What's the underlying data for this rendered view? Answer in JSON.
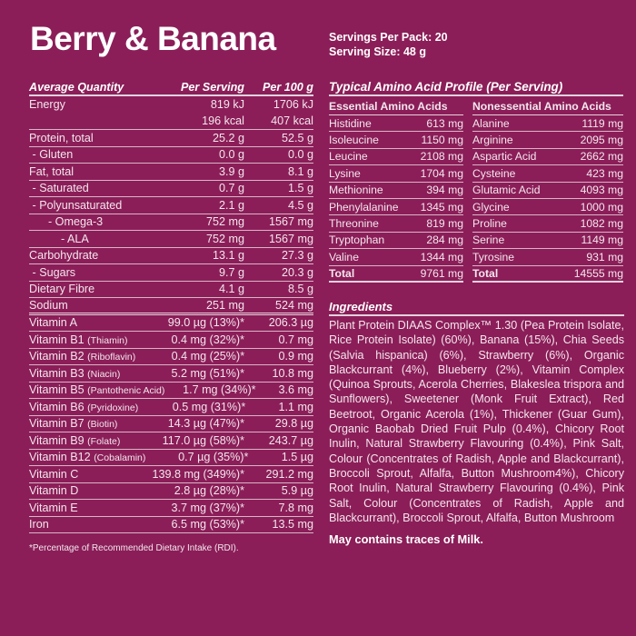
{
  "title": "Berry & Banana",
  "servings_per_pack": "Servings Per Pack: 20",
  "serving_size": "Serving Size: 48 g",
  "nutrition": {
    "headers": [
      "Average Quantity",
      "Per Serving",
      "Per 100 g"
    ],
    "rows": [
      [
        "Energy",
        "819 kJ",
        "1706 kJ"
      ],
      [
        "",
        "196 kcal",
        "407 kcal"
      ],
      [
        "Protein, total",
        "25.2 g",
        "52.5 g"
      ],
      [
        " - Gluten",
        "0.0 g",
        "0.0 g"
      ],
      [
        "Fat, total",
        "3.9 g",
        "8.1 g"
      ],
      [
        " - Saturated",
        "0.7 g",
        "1.5 g"
      ],
      [
        " - Polyunsaturated",
        "2.1 g",
        "4.5 g"
      ],
      [
        "      - Omega-3",
        "752 mg",
        "1567 mg"
      ],
      [
        "          - ALA",
        "752 mg",
        "1567 mg"
      ],
      [
        "Carbohydrate",
        "13.1 g",
        "27.3 g"
      ],
      [
        " - Sugars",
        "9.7 g",
        "20.3 g"
      ],
      [
        "Dietary Fibre",
        "4.1 g",
        "8.5 g"
      ],
      [
        "Sodium",
        "251 mg",
        "524 mg"
      ]
    ],
    "vitamins": [
      [
        "Vitamin A",
        "",
        "99.0 µg (13%)*",
        "206.3 µg"
      ],
      [
        "Vitamin B1",
        "(Thiamin)",
        "0.4 mg (32%)*",
        "0.7 mg"
      ],
      [
        "Vitamin B2",
        "(Riboflavin)",
        "0.4 mg (25%)*",
        "0.9 mg"
      ],
      [
        "Vitamin B3",
        "(Niacin)",
        "5.2 mg (51%)*",
        "10.8 mg"
      ],
      [
        "Vitamin B5",
        "(Pantothenic Acid)",
        "1.7 mg (34%)*",
        "3.6 mg"
      ],
      [
        "Vitamin B6",
        "(Pyridoxine)",
        "0.5 mg (31%)*",
        "1.1 mg"
      ],
      [
        "Vitamin B7",
        "(Biotin)",
        "14.3 µg (47%)*",
        "29.8 µg"
      ],
      [
        "Vitamin B9",
        "(Folate)",
        "117.0 µg (58%)*",
        "243.7 µg"
      ],
      [
        "Vitamin B12",
        "(Cobalamin)",
        "0.7 µg (35%)*",
        "1.5 µg"
      ],
      [
        "Vitamin C",
        "",
        "139.8 mg (349%)*",
        "291.2 mg"
      ],
      [
        "Vitamin D",
        "",
        "2.8 µg (28%)*",
        "5.9 µg"
      ],
      [
        "Vitamin E",
        "",
        "3.7 mg (37%)*",
        "7.8 mg"
      ],
      [
        "Iron",
        "",
        "6.5 mg (53%)*",
        "13.5 mg"
      ]
    ],
    "footnote": "*Percentage of Recommended Dietary Intake (RDI)."
  },
  "amino": {
    "title": "Typical Amino Acid Profile (Per Serving)",
    "essential": {
      "heading": "Essential Amino Acids",
      "rows": [
        [
          "Histidine",
          "613 mg"
        ],
        [
          "Isoleucine",
          "1150 mg"
        ],
        [
          "Leucine",
          "2108 mg"
        ],
        [
          "Lysine",
          "1704 mg"
        ],
        [
          "Methionine",
          "394 mg"
        ],
        [
          "Phenylalanine",
          "1345 mg"
        ],
        [
          "Threonine",
          "819 mg"
        ],
        [
          "Tryptophan",
          "284 mg"
        ],
        [
          "Valine",
          "1344 mg"
        ]
      ],
      "total": [
        "Total",
        "9761 mg"
      ]
    },
    "nonessential": {
      "heading": "Nonessential Amino Acids",
      "rows": [
        [
          "Alanine",
          "1119 mg"
        ],
        [
          "Arginine",
          "2095 mg"
        ],
        [
          "Aspartic Acid",
          "2662 mg"
        ],
        [
          "Cysteine",
          "423 mg"
        ],
        [
          "Glutamic Acid",
          "4093 mg"
        ],
        [
          "Glycine",
          "1000 mg"
        ],
        [
          "Proline",
          "1082 mg"
        ],
        [
          "Serine",
          "1149 mg"
        ],
        [
          "Tyrosine",
          "931 mg"
        ]
      ],
      "total": [
        "Total",
        "14555 mg"
      ]
    }
  },
  "ingredients": {
    "heading": "Ingredients",
    "text": "Plant Protein DIAAS Complex™ 1.30 (Pea Protein Isolate, Rice Protein Isolate) (60%), Banana (15%), Chia Seeds (Salvia hispanica) (6%), Strawberry (6%), Organic Blackcurrant (4%), Blueberry (2%), Vitamin Complex (Quinoa Sprouts, Acerola Cherries, Blakeslea trispora and Sunflowers), Sweetener (Monk Fruit Extract), Red Beetroot, Organic Acero­la (1%), Thickener (Guar Gum), Organic Baobab Dried Fruit Pulp (0.4%), Chicory Root Inulin, Natu­ral Strawberry Flavouring (0.4%), Pink Salt, Colour (Concentrates of Radish, Apple and Blackcurrant), Broccoli Sprout, Alfalfa, Button Mushroom4%), Chicory Root Inulin, Natural Strawberry Flavouring (0.4%), Pink Salt, Colour (Concentrates of Radish, Apple and Blackcurrant), Broccoli Sprout, Alfalfa, Button Mushroom",
    "allergen": "May contains traces of Milk."
  },
  "colors": {
    "background": "#8b1e58",
    "text": "#f3e6ee"
  }
}
